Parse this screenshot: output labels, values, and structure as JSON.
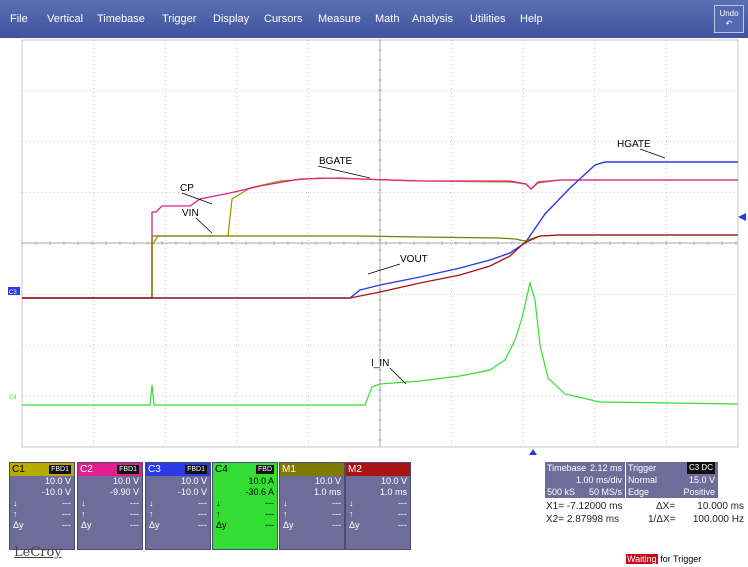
{
  "menu": [
    "File",
    "Vertical",
    "Timebase",
    "Trigger",
    "Display",
    "Cursors",
    "Measure",
    "Math",
    "Analysis",
    "Utilities",
    "Help"
  ],
  "undo_label": "Undo",
  "colors": {
    "c1": "#a39a00",
    "c2": "#e0208c",
    "c3": "#2a3ae8",
    "c4": "#33dd33",
    "m1": "#817a00",
    "m2": "#a81313",
    "grid": "#a8a8a8"
  },
  "trace_labels": {
    "cp": "CP",
    "vin": "VIN",
    "bgate": "BGATE",
    "hgate": "HGATE",
    "vout": "VOUT",
    "i_in": "I_IN"
  },
  "ch_markers": {
    "c3": "C3",
    "c4": "C4"
  },
  "channels": [
    {
      "id": "C1",
      "badge": "FBD1",
      "color": "#b6ac00",
      "scale": "10.0 V",
      "offset": "-10.0 V",
      "down": "---",
      "up": "---",
      "dy": "---"
    },
    {
      "id": "C2",
      "badge": "FBD1",
      "color": "#e0208c",
      "scale": "10.0 V",
      "offset": "-9.90 V",
      "down": "---",
      "up": "---",
      "dy": "---"
    },
    {
      "id": "C3",
      "badge": "FBD1",
      "color": "#2a3ae8",
      "scale": "10.0 V",
      "offset": "-10.0 V",
      "down": "---",
      "up": "---",
      "dy": "---"
    },
    {
      "id": "C4",
      "badge": "FBD",
      "color": "#33dd33",
      "scale": "10.0 A",
      "offset": "-30.6 A",
      "down": "---",
      "up": "---",
      "dy": "---"
    },
    {
      "id": "M1",
      "badge": "",
      "color": "#817a00",
      "scale": "10.0 V",
      "offset": "1.0 ms",
      "down": "---",
      "up": "---",
      "dy": "---"
    },
    {
      "id": "M2",
      "badge": "",
      "color": "#a81313",
      "scale": "10.0 V",
      "offset": "1.0 ms",
      "down": "---",
      "up": "---",
      "dy": "---"
    }
  ],
  "row_labels": {
    "down": "↓",
    "up": "↑",
    "dy": "Δy"
  },
  "timebase": {
    "title": "Timebase",
    "delay": "2.12 ms",
    "per_div": "1.00 ms/div",
    "samples": "500 kS",
    "rate": "50 MS/s"
  },
  "trigger": {
    "title": "Trigger",
    "badge": "C3 DC",
    "mode": "Normal",
    "level": "15.0 V",
    "type": "Edge",
    "slope": "Positive"
  },
  "cursors": {
    "x1_label": "X1=",
    "x1": "-7.12000 ms",
    "dx_label": "ΔX=",
    "dx": "10.000 ms",
    "x2_label": "X2=",
    "x2": "2.87998 ms",
    "inv_dx_label": "1/ΔX=",
    "inv_dx": "100.000 Hz"
  },
  "logo": "LeCroy",
  "status": {
    "highlight": "Waiting",
    "rest": " for Trigger"
  }
}
